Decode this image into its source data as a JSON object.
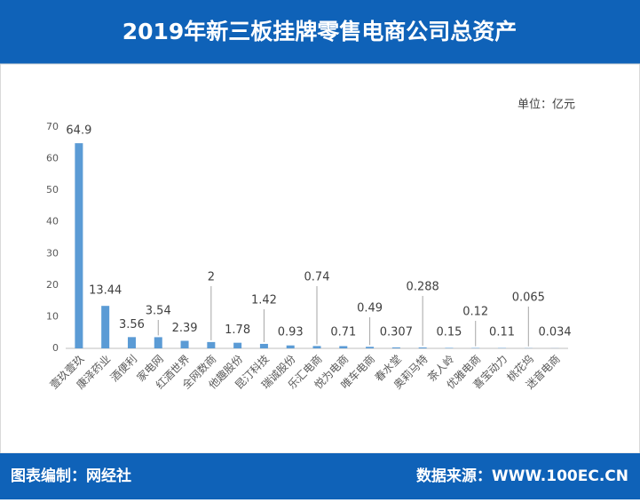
{
  "chart_data": {
    "type": "bar",
    "title": "2019年新三板挂牌零售电商公司总资产",
    "unit_label": "单位：亿元",
    "categories": [
      "壹玖壹玖",
      "康泽药业",
      "酒便利",
      "家电网",
      "红酒世界",
      "全网数商",
      "他趣股份",
      "昆汀科技",
      "瑞诚股份",
      "乐汇电商",
      "悦为电商",
      "唯车电商",
      "春水堂",
      "奥莉马特",
      "茶人岭",
      "优雅电商",
      "喜宝动力",
      "桃花坞",
      "迷音电商"
    ],
    "values": [
      64.9,
      13.44,
      3.56,
      3.54,
      2.39,
      2,
      1.78,
      1.42,
      0.93,
      0.74,
      0.71,
      0.49,
      0.307,
      0.288,
      0.15,
      0.12,
      0.11,
      0.065,
      0.034
    ],
    "color": "#5b9bd5",
    "ylim": [
      0,
      70
    ],
    "yticks": [
      0,
      10,
      20,
      30,
      40,
      50,
      60,
      70
    ],
    "grid": false
  },
  "footer": {
    "left": "图表编制：网经社",
    "right": "数据来源：WWW.100EC.CN"
  }
}
